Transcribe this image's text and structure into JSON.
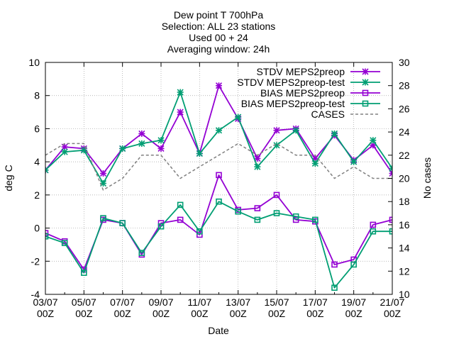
{
  "chart_data": {
    "type": "line",
    "title_lines": [
      "Dew point T 700hPa",
      "Selection: ALL      23 stations",
      "Used 00 + 24",
      "Averaging window: 24h"
    ],
    "xlabel": "Date",
    "ylabel": "deg C",
    "y2label": "No cases",
    "ylim": [
      -4,
      10
    ],
    "y2lim": [
      10,
      30
    ],
    "yticks": [
      -4,
      -2,
      0,
      2,
      4,
      6,
      8,
      10
    ],
    "y2ticks": [
      10,
      12,
      14,
      16,
      18,
      20,
      22,
      24,
      26,
      28,
      30
    ],
    "x_tick_labels": [
      [
        "03/07",
        "00Z"
      ],
      [
        "05/07",
        "00Z"
      ],
      [
        "07/07",
        "00Z"
      ],
      [
        "09/07",
        "00Z"
      ],
      [
        "11/07",
        "00Z"
      ],
      [
        "13/07",
        "00Z"
      ],
      [
        "15/07",
        "00Z"
      ],
      [
        "17/07",
        "00Z"
      ],
      [
        "19/07",
        "00Z"
      ],
      [
        "21/07",
        "00Z"
      ]
    ],
    "x": [
      "03/07",
      "04/07",
      "05/07",
      "06/07",
      "07/07",
      "08/07",
      "09/07",
      "10/07",
      "11/07",
      "12/07",
      "13/07",
      "14/07",
      "15/07",
      "16/07",
      "17/07",
      "18/07",
      "19/07",
      "20/07",
      "21/07"
    ],
    "grid": true,
    "legend_position": "top-right",
    "series": [
      {
        "name": "STDV MEPS2preop",
        "axis": "y",
        "color": "#9400d3",
        "marker": "star",
        "dash": false,
        "values": [
          3.5,
          4.9,
          4.8,
          3.3,
          4.8,
          5.7,
          4.8,
          7.0,
          4.5,
          8.6,
          6.6,
          4.2,
          5.9,
          6.0,
          4.2,
          5.6,
          4.1,
          5.0,
          3.3
        ]
      },
      {
        "name": "STDV MEPS2preop-test",
        "axis": "y",
        "color": "#009e73",
        "marker": "star",
        "dash": false,
        "values": [
          3.5,
          4.6,
          4.7,
          2.7,
          4.8,
          5.1,
          5.3,
          8.2,
          4.5,
          5.9,
          6.7,
          3.7,
          5.0,
          5.9,
          3.9,
          5.7,
          4.0,
          5.3,
          3.6
        ]
      },
      {
        "name": "BIAS MEPS2preop",
        "axis": "y",
        "color": "#9400d3",
        "marker": "square",
        "dash": false,
        "values": [
          -0.3,
          -0.8,
          -2.5,
          0.5,
          0.3,
          -1.6,
          0.3,
          0.5,
          -0.4,
          3.2,
          1.1,
          1.2,
          2.0,
          0.5,
          0.4,
          -2.2,
          -1.9,
          0.2,
          0.5
        ]
      },
      {
        "name": "BIAS MEPS2preop-test",
        "axis": "y",
        "color": "#009e73",
        "marker": "square",
        "dash": false,
        "values": [
          -0.5,
          -0.9,
          -2.7,
          0.6,
          0.3,
          -1.5,
          0.1,
          1.4,
          -0.2,
          1.6,
          1.0,
          0.5,
          0.9,
          0.7,
          0.5,
          -3.6,
          -2.2,
          -0.2,
          -0.2
        ]
      },
      {
        "name": "CASES",
        "axis": "y2",
        "color": "#808080",
        "marker": "none",
        "dash": true,
        "values": [
          22,
          23,
          23,
          19,
          20,
          22,
          22,
          20,
          21,
          22,
          23,
          22,
          23,
          22,
          22,
          20,
          21,
          20,
          20
        ]
      }
    ]
  }
}
